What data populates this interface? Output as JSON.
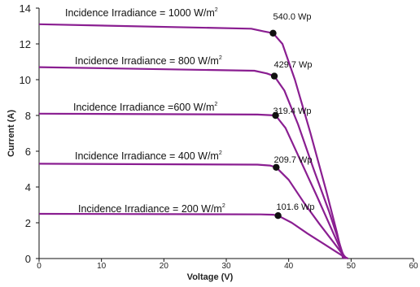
{
  "chart_data": {
    "type": "line",
    "xlabel": "Voltage (V)",
    "ylabel": "Current (A)",
    "xlim": [
      0,
      60
    ],
    "ylim": [
      0,
      14
    ],
    "x_ticks": [
      0,
      10,
      20,
      30,
      40,
      50,
      60
    ],
    "y_ticks": [
      0,
      2,
      4,
      6,
      8,
      10,
      12,
      14
    ],
    "x_tick_labels": [
      "0",
      "10",
      "20",
      "30",
      "40",
      "50",
      "60"
    ],
    "y_tick_labels": [
      "0",
      "2",
      "4",
      "6",
      "8",
      "10",
      "12",
      "14"
    ],
    "grid": false,
    "line_color": "#8a1e91",
    "series": [
      {
        "name": "Incidence Irradiance = 1000 W/m",
        "name_sup": "2",
        "peak_label": "540.0 Wp",
        "peak": {
          "v": 37.5,
          "i": 12.6
        },
        "points": [
          [
            0,
            13.1
          ],
          [
            34,
            12.85
          ],
          [
            36,
            12.7
          ],
          [
            37.5,
            12.6
          ],
          [
            39,
            12.0
          ],
          [
            41,
            10.0
          ],
          [
            43.5,
            7.0
          ],
          [
            46,
            3.8
          ],
          [
            47.7,
            1.5
          ],
          [
            48.7,
            0
          ]
        ]
      },
      {
        "name": "Incidence Irradiance = 800 W/m",
        "name_sup": "2",
        "peak_label": "429.7 Wp",
        "peak": {
          "v": 37.7,
          "i": 10.2
        },
        "points": [
          [
            0,
            10.7
          ],
          [
            34.5,
            10.5
          ],
          [
            36.5,
            10.35
          ],
          [
            37.7,
            10.2
          ],
          [
            39.3,
            9.4
          ],
          [
            41.5,
            7.5
          ],
          [
            44,
            5.0
          ],
          [
            46.5,
            2.6
          ],
          [
            48,
            1.0
          ],
          [
            48.9,
            0
          ]
        ]
      },
      {
        "name": "Incidence Irradiance =600 W/m",
        "name_sup": "2",
        "peak_label": "319.4 Wp",
        "peak": {
          "v": 37.9,
          "i": 8.0
        },
        "points": [
          [
            0,
            8.1
          ],
          [
            35,
            8.05
          ],
          [
            37,
            8.02
          ],
          [
            37.9,
            8.0
          ],
          [
            39.5,
            7.3
          ],
          [
            42,
            5.4
          ],
          [
            44.5,
            3.5
          ],
          [
            46.8,
            1.7
          ],
          [
            48.2,
            0.6
          ],
          [
            49.1,
            0
          ]
        ]
      },
      {
        "name": "Incidence Irradiance = 400 W/m",
        "name_sup": "2",
        "peak_label": "209.7 Wp",
        "peak": {
          "v": 38.0,
          "i": 5.1
        },
        "points": [
          [
            0,
            5.3
          ],
          [
            35,
            5.25
          ],
          [
            37,
            5.2
          ],
          [
            38.0,
            5.1
          ],
          [
            40,
            4.4
          ],
          [
            42.5,
            3.1
          ],
          [
            45,
            1.9
          ],
          [
            47.2,
            0.9
          ],
          [
            48.5,
            0.3
          ],
          [
            49.3,
            0
          ]
        ]
      },
      {
        "name": "Incidence Irradiance = 200 W/m",
        "name_sup": "2",
        "peak_label": "101.6 Wp",
        "peak": {
          "v": 38.3,
          "i": 2.4
        },
        "points": [
          [
            0,
            2.5
          ],
          [
            35.5,
            2.47
          ],
          [
            37.5,
            2.45
          ],
          [
            38.3,
            2.4
          ],
          [
            40.5,
            2.0
          ],
          [
            43,
            1.4
          ],
          [
            45.5,
            0.85
          ],
          [
            47.5,
            0.4
          ],
          [
            48.8,
            0.12
          ],
          [
            49.5,
            0
          ]
        ]
      }
    ]
  }
}
